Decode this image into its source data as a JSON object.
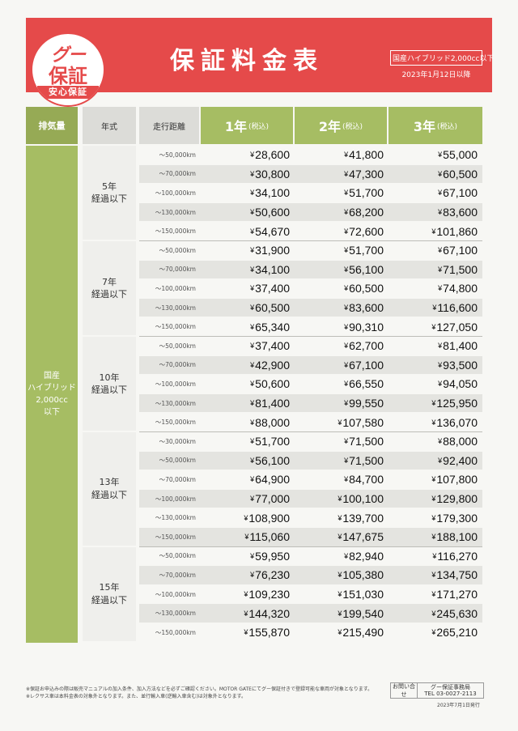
{
  "header": {
    "logo_top": "グー",
    "logo_main": "保証",
    "logo_ribbon": "安心保証",
    "title": "保証料金表",
    "note_boxed": "国産ハイブリッド2,000cc以下",
    "note_date": "2023年1月12日以降"
  },
  "columns": {
    "displacement": "排気量",
    "age": "年式",
    "mileage": "走行距離",
    "y1": "1年",
    "y2": "2年",
    "y3": "3年",
    "tax_note": "(税込)"
  },
  "displacement_label": [
    "国産",
    "ハイブリッド",
    "2,000cc",
    "以下"
  ],
  "currency": "¥",
  "groups": [
    {
      "age_line1": "5年",
      "age_line2": "経過以下",
      "rows": [
        {
          "mileage": "～50,000km",
          "y1": "28,600",
          "y2": "41,800",
          "y3": "55,000"
        },
        {
          "mileage": "～70,000km",
          "y1": "30,800",
          "y2": "47,300",
          "y3": "60,500"
        },
        {
          "mileage": "～100,000km",
          "y1": "34,100",
          "y2": "51,700",
          "y3": "67,100"
        },
        {
          "mileage": "～130,000km",
          "y1": "50,600",
          "y2": "68,200",
          "y3": "83,600"
        },
        {
          "mileage": "～150,000km",
          "y1": "54,670",
          "y2": "72,600",
          "y3": "101,860"
        }
      ]
    },
    {
      "age_line1": "7年",
      "age_line2": "経過以下",
      "rows": [
        {
          "mileage": "～50,000km",
          "y1": "31,900",
          "y2": "51,700",
          "y3": "67,100"
        },
        {
          "mileage": "～70,000km",
          "y1": "34,100",
          "y2": "56,100",
          "y3": "71,500"
        },
        {
          "mileage": "～100,000km",
          "y1": "37,400",
          "y2": "60,500",
          "y3": "74,800"
        },
        {
          "mileage": "～130,000km",
          "y1": "60,500",
          "y2": "83,600",
          "y3": "116,600"
        },
        {
          "mileage": "～150,000km",
          "y1": "65,340",
          "y2": "90,310",
          "y3": "127,050"
        }
      ]
    },
    {
      "age_line1": "10年",
      "age_line2": "経過以下",
      "rows": [
        {
          "mileage": "～50,000km",
          "y1": "37,400",
          "y2": "62,700",
          "y3": "81,400"
        },
        {
          "mileage": "～70,000km",
          "y1": "42,900",
          "y2": "67,100",
          "y3": "93,500"
        },
        {
          "mileage": "～100,000km",
          "y1": "50,600",
          "y2": "66,550",
          "y3": "94,050"
        },
        {
          "mileage": "～130,000km",
          "y1": "81,400",
          "y2": "99,550",
          "y3": "125,950"
        },
        {
          "mileage": "～150,000km",
          "y1": "88,000",
          "y2": "107,580",
          "y3": "136,070"
        }
      ]
    },
    {
      "age_line1": "13年",
      "age_line2": "経過以下",
      "rows": [
        {
          "mileage": "～30,000km",
          "y1": "51,700",
          "y2": "71,500",
          "y3": "88,000"
        },
        {
          "mileage": "～50,000km",
          "y1": "56,100",
          "y2": "71,500",
          "y3": "92,400"
        },
        {
          "mileage": "～70,000km",
          "y1": "64,900",
          "y2": "84,700",
          "y3": "107,800"
        },
        {
          "mileage": "～100,000km",
          "y1": "77,000",
          "y2": "100,100",
          "y3": "129,800"
        },
        {
          "mileage": "～130,000km",
          "y1": "108,900",
          "y2": "139,700",
          "y3": "179,300"
        },
        {
          "mileage": "～150,000km",
          "y1": "115,060",
          "y2": "147,675",
          "y3": "188,100"
        }
      ]
    },
    {
      "age_line1": "15年",
      "age_line2": "経過以下",
      "rows": [
        {
          "mileage": "～50,000km",
          "y1": "59,950",
          "y2": "82,940",
          "y3": "116,270"
        },
        {
          "mileage": "～70,000km",
          "y1": "76,230",
          "y2": "105,380",
          "y3": "134,750"
        },
        {
          "mileage": "～100,000km",
          "y1": "109,230",
          "y2": "151,030",
          "y3": "171,270"
        },
        {
          "mileage": "～130,000km",
          "y1": "144,320",
          "y2": "199,540",
          "y3": "245,630"
        },
        {
          "mileage": "～150,000km",
          "y1": "155,870",
          "y2": "215,490",
          "y3": "265,210"
        }
      ]
    }
  ],
  "footer": {
    "note_line1": "※保証お申込みの際は販売マニュアルの加入条件、加入方法などを必ずご確認ください。MOTOR GATEにてグー保証付きで登録可能な車両が対象となります。",
    "note_line2": "※レクサス車は本料金表の対象外となります。また、並行輸入車(逆輸入車含む)は対象外となります。",
    "contact_label": "お問い合せ",
    "contact_name": "グー保証事務局",
    "contact_tel": "TEL 03-0027-2113",
    "issued": "2023年7月1日発行"
  }
}
